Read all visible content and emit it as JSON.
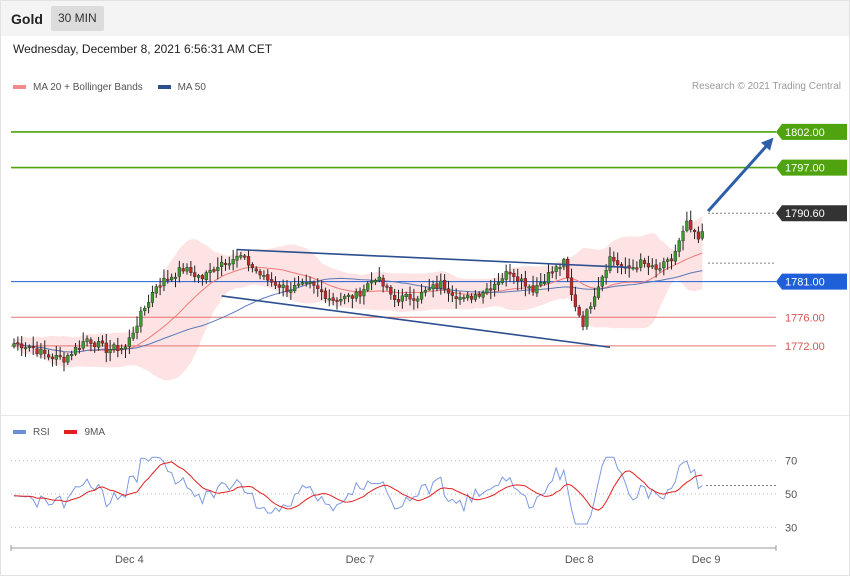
{
  "header": {
    "instrument": "Gold",
    "timeframe": "30 MIN",
    "timestamp": "Wednesday, December 8, 2021 6:56:31 AM CET",
    "credit": "Research © 2021 Trading Central"
  },
  "legend": {
    "main": [
      {
        "label": "MA 20 + Bollinger Bands",
        "color": "#f28b8b"
      },
      {
        "label": "MA 50",
        "color": "#2d4f8f"
      }
    ],
    "rsi": [
      {
        "label": "RSI",
        "color": "#6a8fd8"
      },
      {
        "label": "9MA",
        "color": "#e02020"
      }
    ]
  },
  "chart_data": [
    {
      "type": "candlestick",
      "ylim": [
        1764.4,
        1807.6
      ],
      "levels": [
        {
          "value": 1802.0,
          "label": "1802.00",
          "kind": "resistance",
          "color": "#4fa30f"
        },
        {
          "value": 1797.0,
          "label": "1797.00",
          "kind": "resistance",
          "color": "#4fa30f"
        },
        {
          "value": 1790.6,
          "label": "1790.60",
          "kind": "last",
          "color": "#333333"
        },
        {
          "value": 1781.0,
          "label": "1781.00",
          "kind": "pivot",
          "color": "#1f5fd8"
        },
        {
          "value": 1776.0,
          "label": "1776.00",
          "kind": "support",
          "color": "#e57373"
        },
        {
          "value": 1772.0,
          "label": "1772.00",
          "kind": "support",
          "color": "#e57373"
        }
      ],
      "x_ticks": [
        {
          "label": "Dec 4",
          "index": 30
        },
        {
          "label": "Dec 7",
          "index": 90
        },
        {
          "label": "Dec 8",
          "index": 147
        },
        {
          "label": "Dec 9",
          "index": 180
        }
      ],
      "channel": {
        "upper": [
          [
            58,
            1785.5
          ],
          [
            160,
            1783.0
          ]
        ],
        "lower": [
          [
            54,
            1779.0
          ],
          [
            155,
            1771.8
          ]
        ]
      },
      "forecast_arrow": [
        [
          180,
          1790.9
        ],
        [
          197,
          1801.2
        ]
      ],
      "n_candles": 180
    },
    {
      "type": "line",
      "name": "RSI",
      "ylim": [
        20,
        80
      ],
      "reference_lines": [
        70,
        50,
        30
      ],
      "tick_labels": [
        "70",
        "50",
        "30"
      ]
    }
  ]
}
